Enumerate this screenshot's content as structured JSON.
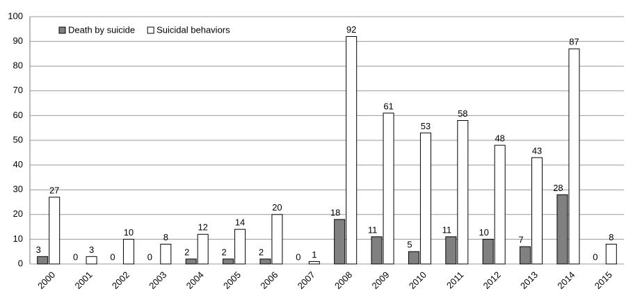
{
  "chart_data": {
    "type": "bar",
    "categories": [
      "2000",
      "2001",
      "2002",
      "2003",
      "2004",
      "2005",
      "2006",
      "2007",
      "2008",
      "2009",
      "2010",
      "2011",
      "2012",
      "2013",
      "2014",
      "2015"
    ],
    "series": [
      {
        "name": "Death by suicide",
        "color": "#808080",
        "values": [
          3,
          0,
          0,
          0,
          2,
          2,
          2,
          0,
          18,
          11,
          5,
          11,
          10,
          7,
          28,
          0
        ]
      },
      {
        "name": "Suicidal behaviors",
        "color": "#ffffff",
        "values": [
          27,
          3,
          10,
          8,
          12,
          14,
          20,
          1,
          92,
          61,
          53,
          58,
          48,
          43,
          87,
          8
        ]
      }
    ],
    "ylim": [
      0,
      100
    ],
    "yticks": [
      0,
      10,
      20,
      30,
      40,
      50,
      60,
      70,
      80,
      90,
      100
    ],
    "grid": true,
    "legend": "upper left"
  }
}
